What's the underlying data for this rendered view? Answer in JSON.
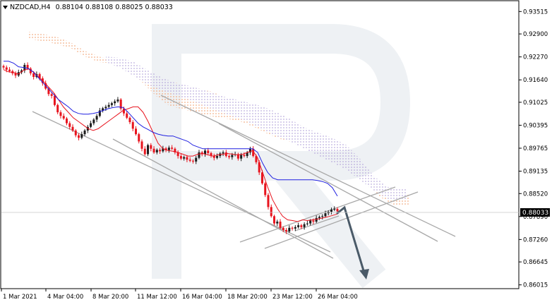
{
  "header": {
    "symbol": "NZDCAD,H4",
    "quote": "0.88104 0.88108 0.88025 0.88033"
  },
  "price_tag": "0.88033",
  "colors": {
    "bull": "#1c1c1c",
    "bear": "#e8141e",
    "tenkan": "#e8141e",
    "kijun": "#1f1fe0",
    "cloud_a": "#f0a070",
    "cloud_b": "#b0a0d8",
    "trendline": "#a8a8a8",
    "arrow": "#4a5a68",
    "watermark": "#eef1f4"
  },
  "chart_data": {
    "type": "candlestick",
    "instrument": "NZDCAD",
    "timeframe": "H4",
    "ohlc_last": {
      "open": 0.88104,
      "high": 0.88108,
      "low": 0.88025,
      "close": 0.88033
    },
    "current_price": 0.88033,
    "x_tick_labels": [
      "1 Mar 2021",
      "4 Mar 04:00",
      "8 Mar 20:00",
      "11 Mar 12:00",
      "16 Mar 04:00",
      "18 Mar 20:00",
      "23 Mar 12:00",
      "26 Mar 04:00"
    ],
    "y_tick_labels": [
      "0.93515",
      "0.92900",
      "0.92270",
      "0.91640",
      "0.91025",
      "0.90395",
      "0.89765",
      "0.89135",
      "0.88520",
      "0.87890",
      "0.87260",
      "0.86645",
      "0.86015"
    ],
    "ylim": [
      0.8595,
      0.9356
    ],
    "closes": [
      0.9198,
      0.9192,
      0.9188,
      0.9182,
      0.9176,
      0.9185,
      0.919,
      0.9205,
      0.9195,
      0.9182,
      0.9172,
      0.918,
      0.9168,
      0.9155,
      0.914,
      0.9125,
      0.912,
      0.9095,
      0.9075,
      0.9065,
      0.9058,
      0.9045,
      0.9035,
      0.9025,
      0.9012,
      0.9005,
      0.9015,
      0.9025,
      0.9035,
      0.9045,
      0.9055,
      0.9065,
      0.908,
      0.9086,
      0.909,
      0.9095,
      0.91,
      0.9105,
      0.911,
      0.9085,
      0.9072,
      0.906,
      0.9048,
      0.903,
      0.9015,
      0.8995,
      0.8975,
      0.896,
      0.8985,
      0.8975,
      0.8965,
      0.8972,
      0.8968,
      0.8976,
      0.8971,
      0.8978,
      0.8975,
      0.8965,
      0.8955,
      0.8948,
      0.8952,
      0.8945,
      0.8942,
      0.894,
      0.895,
      0.8965,
      0.896,
      0.897,
      0.8963,
      0.8956,
      0.895,
      0.8955,
      0.8962,
      0.8965,
      0.8955,
      0.8952,
      0.8958,
      0.896,
      0.8948,
      0.8958,
      0.8955,
      0.8965,
      0.8975,
      0.8955,
      0.8938,
      0.891,
      0.888,
      0.8848,
      0.8815,
      0.879,
      0.877,
      0.8775,
      0.8758,
      0.8752,
      0.8748,
      0.8758,
      0.8756,
      0.876,
      0.8765,
      0.876,
      0.8768,
      0.877,
      0.8778,
      0.8775,
      0.8785,
      0.8788,
      0.879,
      0.8798,
      0.8802,
      0.8808,
      0.881,
      0.8803
    ],
    "series": [
      {
        "name": "tenkan-sen",
        "values": [
          0.9192,
          0.9186,
          0.9184,
          0.918,
          0.919,
          0.9194,
          0.9186,
          0.9172,
          0.916,
          0.9145,
          0.913,
          0.911,
          0.909,
          0.9075,
          0.906,
          0.905,
          0.904,
          0.903,
          0.9025,
          0.903,
          0.904,
          0.905,
          0.906,
          0.907,
          0.908,
          0.9085,
          0.909,
          0.909,
          0.9075,
          0.905,
          0.902,
          0.899,
          0.8975,
          0.897,
          0.8968,
          0.8965,
          0.896,
          0.8955,
          0.8955,
          0.896,
          0.8962,
          0.8958,
          0.8955,
          0.8958,
          0.896,
          0.8962,
          0.896,
          0.8958,
          0.896,
          0.8965,
          0.897,
          0.895,
          0.891,
          0.887,
          0.8835,
          0.881,
          0.879,
          0.878,
          0.8778,
          0.8775,
          0.878,
          0.8778,
          0.878,
          0.8782,
          0.8785,
          0.8788,
          0.8792,
          0.8796
        ]
      },
      {
        "name": "kijun-sen",
        "values": [
          0.9215,
          0.9215,
          0.921,
          0.92,
          0.9198,
          0.9195,
          0.9185,
          0.917,
          0.9155,
          0.914,
          0.9125,
          0.911,
          0.91,
          0.909,
          0.9078,
          0.9072,
          0.907,
          0.907,
          0.9072,
          0.9075,
          0.908,
          0.9085,
          0.9088,
          0.909,
          0.9088,
          0.9075,
          0.906,
          0.9045,
          0.9035,
          0.9028,
          0.902,
          0.9015,
          0.9012,
          0.901,
          0.901,
          0.9005,
          0.9,
          0.8995,
          0.8985,
          0.898,
          0.8975,
          0.8975,
          0.8975,
          0.8975,
          0.8975,
          0.8975,
          0.8975,
          0.8975,
          0.8975,
          0.8975,
          0.8975,
          0.8965,
          0.8935,
          0.891,
          0.8895,
          0.889,
          0.889,
          0.889,
          0.889,
          0.889,
          0.889,
          0.889,
          0.889,
          0.8888,
          0.8885,
          0.888,
          0.8868,
          0.8845
        ]
      }
    ],
    "grid": false,
    "annotations": [
      "descending channel trendlines",
      "ascending wedge lines",
      "forecast arrow pointing down toward 0.86015"
    ]
  }
}
